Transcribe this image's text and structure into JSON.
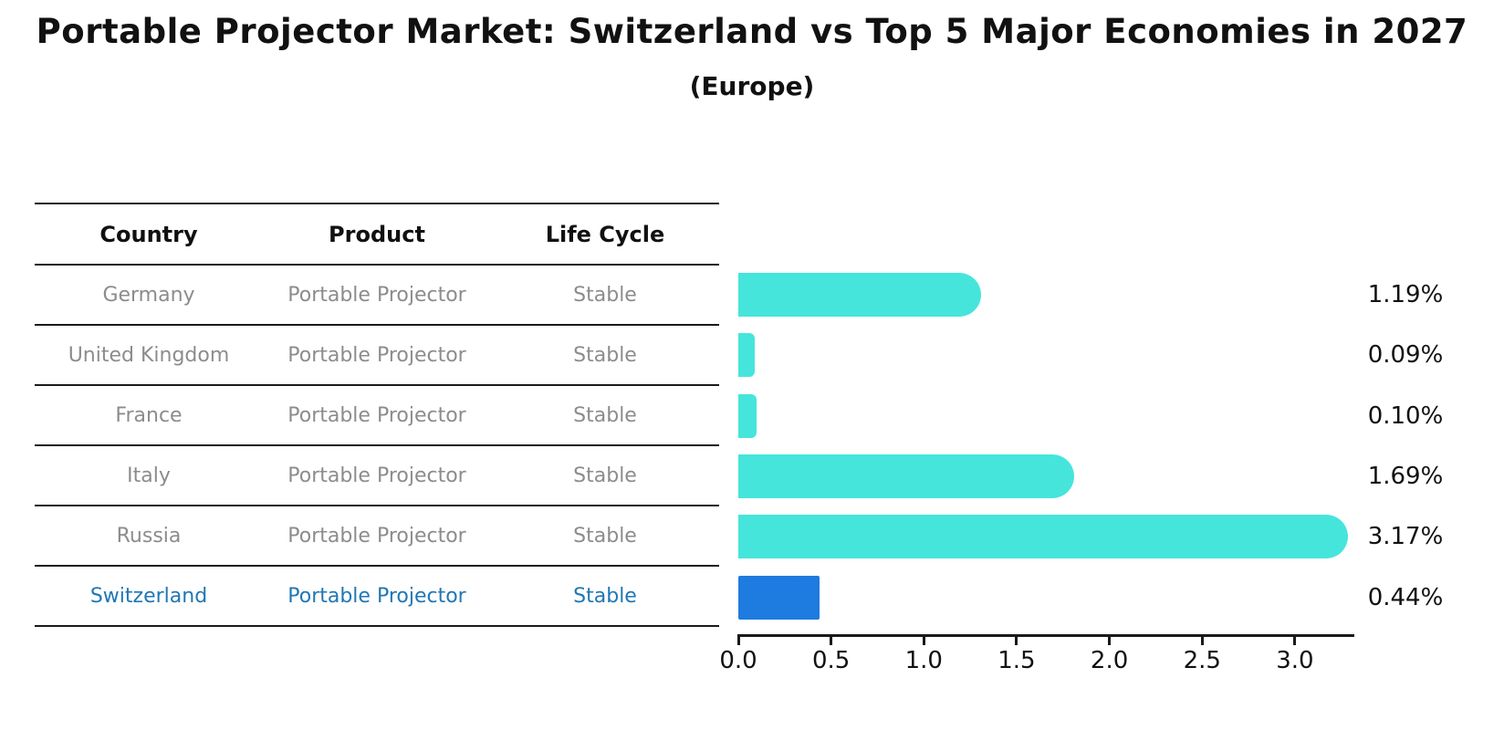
{
  "title": "Portable Projector Market: Switzerland vs Top 5 Major Economies in 2027",
  "subtitle": "(Europe)",
  "table": {
    "headers": [
      "Country",
      "Product",
      "Life Cycle"
    ],
    "rows": [
      {
        "country": "Germany",
        "product": "Portable Projector",
        "life_cycle": "Stable",
        "highlight": false
      },
      {
        "country": "United Kingdom",
        "product": "Portable Projector",
        "life_cycle": "Stable",
        "highlight": false
      },
      {
        "country": "France",
        "product": "Portable Projector",
        "life_cycle": "Stable",
        "highlight": false
      },
      {
        "country": "Italy",
        "product": "Portable Projector",
        "life_cycle": "Stable",
        "highlight": false
      },
      {
        "country": "Russia",
        "product": "Portable Projector",
        "life_cycle": "Stable",
        "highlight": true
      }
    ]
  },
  "chart_data": {
    "type": "bar",
    "orientation": "horizontal",
    "title": "Portable Projector Market: Switzerland vs Top 5 Major Economies in 2027 (Europe)",
    "categories": [
      "Germany",
      "United Kingdom",
      "France",
      "Italy",
      "Russia",
      "Switzerland"
    ],
    "values": [
      1.19,
      0.09,
      0.1,
      1.69,
      3.17,
      0.44
    ],
    "value_labels": [
      "1.19%",
      "0.09%",
      "0.10%",
      "1.69%",
      "3.17%",
      "0.44%"
    ],
    "xlabel": "",
    "ylabel": "",
    "xlim": [
      0,
      3.32
    ],
    "x_ticks": [
      "0.0",
      "0.5",
      "1.0",
      "1.5",
      "2.0",
      "2.5",
      "3.0"
    ],
    "grid": false,
    "legend": "none",
    "bar_color": "#45E5DC",
    "highlight_color": "#1E7BE0",
    "highlight_index": 5,
    "highlight_style": "dashed-edge"
  }
}
